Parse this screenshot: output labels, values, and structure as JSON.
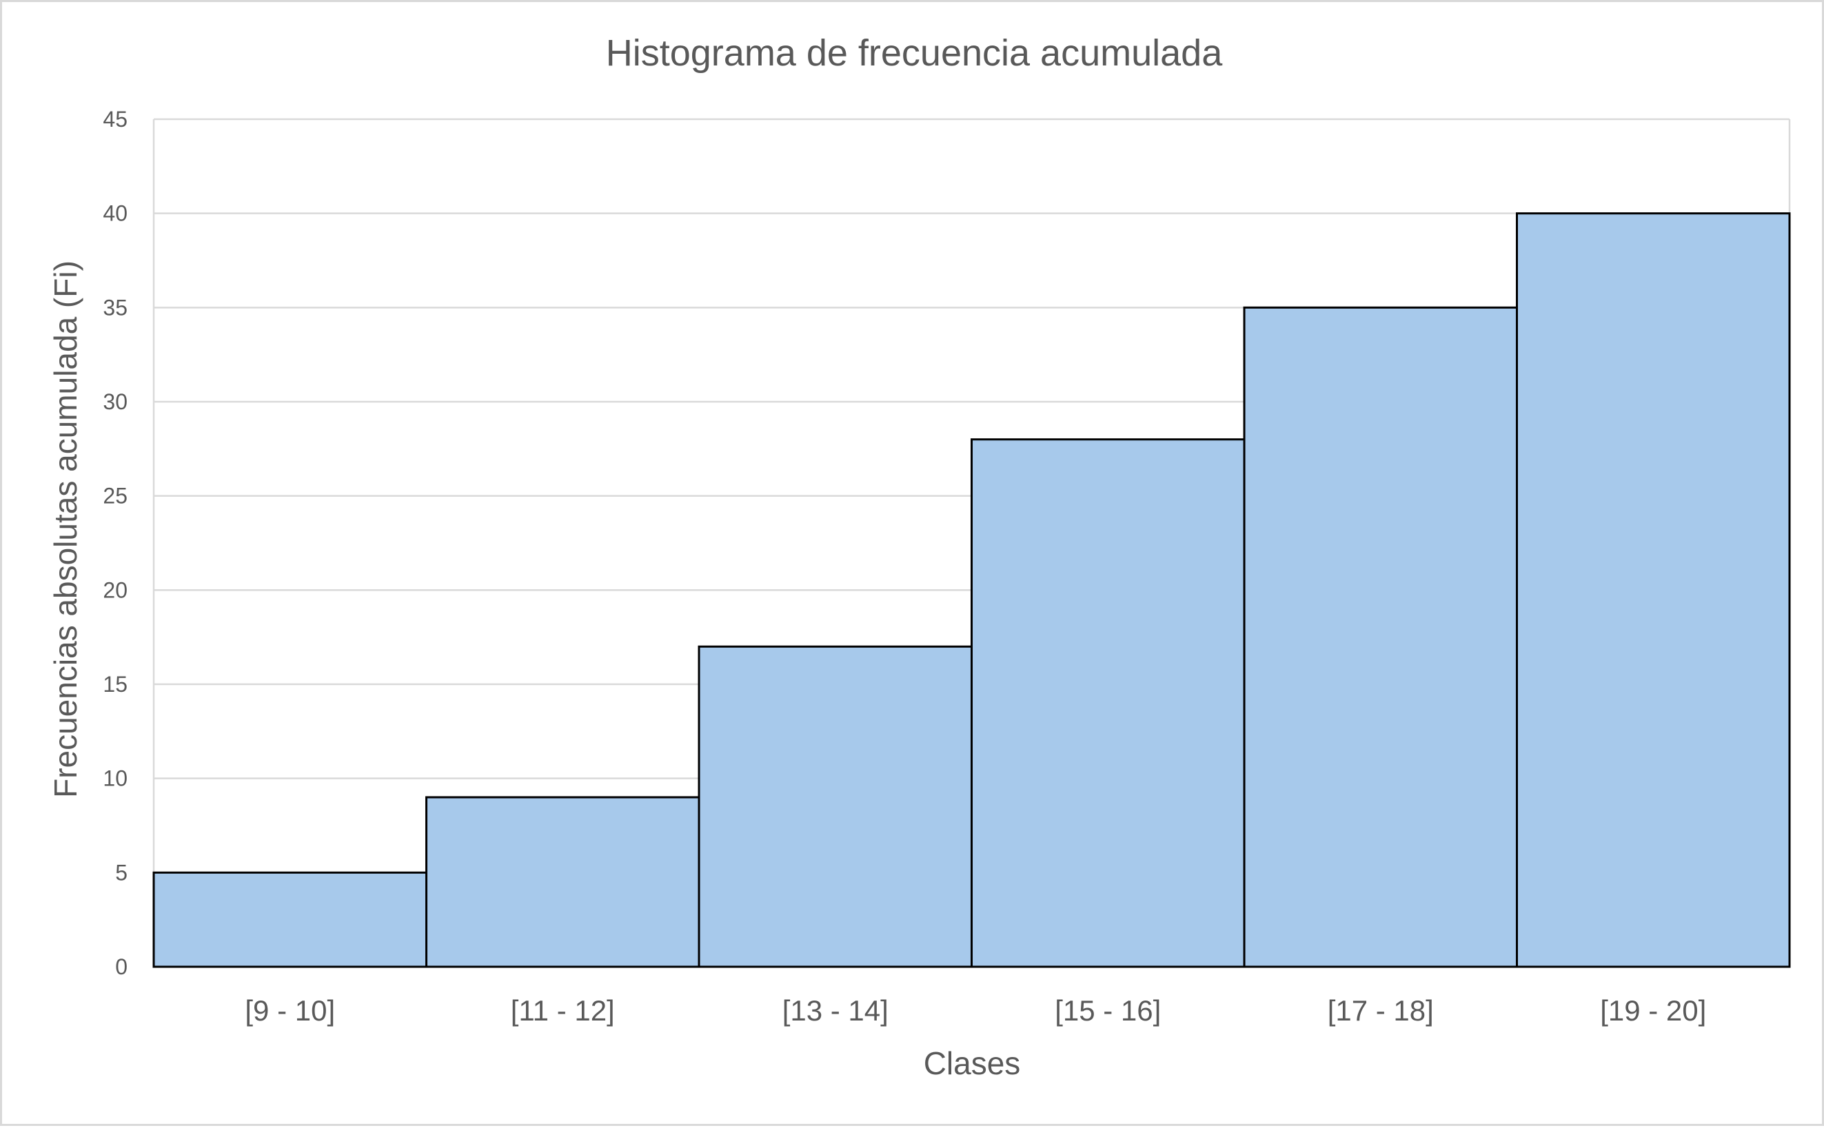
{
  "colors": {
    "bar_fill": "#a7c9eb",
    "bar_outline": "#000000",
    "gridline": "#d9d9d9",
    "text": "#595959"
  },
  "chart_data": {
    "type": "bar",
    "title": "Histograma de frecuencia acumulada",
    "xlabel": "Clases",
    "ylabel": "Frecuencias absolutas acumulada (Fi)",
    "categories": [
      "[9 - 10]",
      "[11 - 12]",
      "[13 - 14]",
      "[15 - 16]",
      "[17 - 18]",
      "[19 - 20]"
    ],
    "values": [
      5,
      9,
      17,
      28,
      35,
      40
    ],
    "ylim": [
      0,
      45
    ],
    "yticks": [
      0,
      5,
      10,
      15,
      20,
      25,
      30,
      35,
      40,
      45
    ],
    "grid": true,
    "legend": "none",
    "bar_gap": 0
  }
}
